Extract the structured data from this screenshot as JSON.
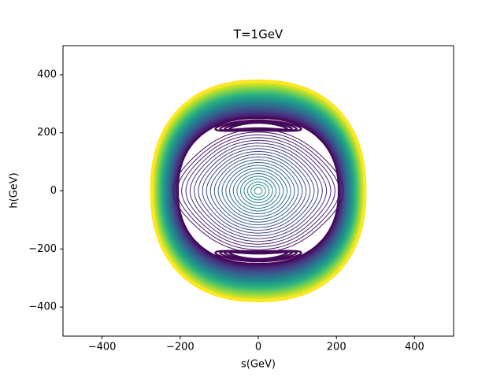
{
  "chart_data": {
    "type": "contour",
    "title": "T=1GeV",
    "xlabel": "s(GeV)",
    "ylabel": "h(GeV)",
    "xlim": [
      -500,
      500
    ],
    "ylim": [
      -500,
      500
    ],
    "xticks": [
      {
        "value": -400,
        "label": "−400"
      },
      {
        "value": -200,
        "label": "−200"
      },
      0,
      200,
      400
    ],
    "yticks": [
      {
        "value": -400,
        "label": "−400"
      },
      {
        "value": -200,
        "label": "−200"
      },
      0,
      200,
      400
    ],
    "colormap": "viridis"
  }
}
